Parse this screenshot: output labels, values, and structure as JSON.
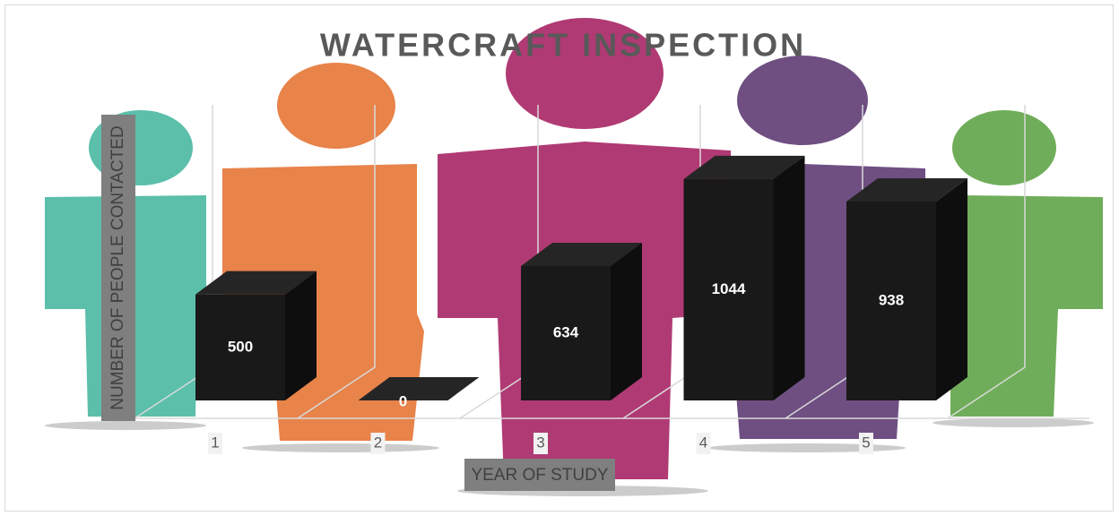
{
  "chart_data": {
    "type": "bar3d",
    "title": "WATERCRAFT INSPECTION",
    "x_label": "YEAR OF STUDY",
    "y_label": "NUMBER OF PEOPLE CONTACTED",
    "categories": [
      "1",
      "2",
      "3",
      "4",
      "5"
    ],
    "values": [
      500,
      0,
      634,
      1044,
      938
    ],
    "color": "#1a1919",
    "ylim": [
      0,
      1200
    ]
  }
}
